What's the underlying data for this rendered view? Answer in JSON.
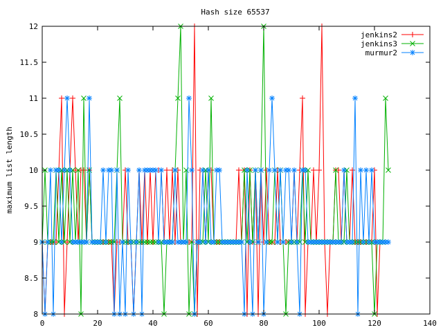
{
  "chart_data": {
    "type": "line",
    "title": "Hash size 65537",
    "xlabel": "",
    "ylabel": "maximum list length",
    "xlim": [
      0,
      140
    ],
    "ylim": [
      8,
      12
    ],
    "xticks": [
      0,
      20,
      40,
      60,
      80,
      100,
      120,
      140
    ],
    "yticks": [
      8,
      8.5,
      9,
      9.5,
      10,
      10.5,
      11,
      11.5,
      12
    ],
    "grid": false,
    "legend_position": "top-right",
    "series": [
      {
        "name": "jenkins2",
        "color": "#ff0000",
        "marker": "plus",
        "values": [
          9,
          8,
          9,
          9,
          9,
          9,
          10,
          11,
          8,
          9,
          10,
          11,
          10,
          9,
          10,
          10,
          9,
          10,
          9,
          9,
          9,
          9,
          9,
          9,
          9,
          9,
          8,
          9,
          9,
          9,
          10,
          9,
          9,
          8,
          9,
          10,
          9,
          10,
          9,
          10,
          9,
          10,
          10,
          10,
          9,
          10,
          9,
          10,
          9,
          10,
          9,
          9,
          9,
          9,
          9,
          12,
          8,
          10,
          10,
          9,
          10,
          10,
          9,
          9,
          9,
          9,
          9,
          9,
          9,
          9,
          9,
          10,
          9,
          10,
          8,
          10,
          9,
          10,
          8,
          10,
          9,
          10,
          9,
          9,
          9,
          10,
          9,
          9,
          9,
          9,
          9,
          10,
          9,
          10,
          11,
          8,
          9,
          9,
          10,
          9,
          10,
          12,
          9,
          8,
          9,
          9,
          10,
          10,
          9,
          10,
          9,
          9,
          10,
          9,
          9,
          9,
          9,
          9,
          9,
          9,
          10,
          8,
          9,
          9,
          9,
          9
        ]
      },
      {
        "name": "jenkins3",
        "color": "#00b000",
        "marker": "x",
        "values": [
          9,
          10,
          9,
          9,
          9,
          10,
          9,
          10,
          9,
          10,
          9,
          10,
          9,
          10,
          8,
          11,
          9,
          10,
          9,
          9,
          9,
          9,
          9,
          9,
          9,
          9,
          9,
          10,
          11,
          9,
          9,
          9,
          9,
          9,
          9,
          9,
          9,
          9,
          9,
          9,
          9,
          9,
          9,
          9,
          8,
          9,
          9,
          9,
          10,
          11,
          12,
          9,
          10,
          8,
          9,
          8,
          9,
          9,
          9,
          10,
          9,
          11,
          9,
          9,
          9,
          9,
          9,
          9,
          9,
          9,
          9,
          9,
          9,
          10,
          9,
          10,
          9,
          10,
          9,
          10,
          12,
          9,
          9,
          9,
          10,
          9,
          10,
          9,
          8,
          9,
          9,
          9,
          9,
          9,
          10,
          9,
          10,
          9,
          9,
          9,
          9,
          9,
          9,
          9,
          9,
          9,
          10,
          9,
          9,
          9,
          10,
          9,
          9,
          9,
          9,
          9,
          9,
          9,
          9,
          9,
          8,
          9,
          9,
          9,
          11,
          10
        ]
      },
      {
        "name": "murmur2",
        "color": "#0080ff",
        "marker": "star",
        "values": [
          9,
          8,
          9,
          10,
          8,
          10,
          10,
          9,
          10,
          11,
          10,
          9,
          9,
          9,
          9,
          9,
          9,
          11,
          9,
          9,
          9,
          9,
          10,
          9,
          10,
          10,
          8,
          10,
          8,
          9,
          8,
          10,
          9,
          8,
          9,
          10,
          8,
          10,
          10,
          10,
          10,
          10,
          9,
          10,
          9,
          9,
          9,
          9,
          10,
          9,
          9,
          9,
          9,
          11,
          10,
          8,
          9,
          9,
          10,
          9,
          10,
          9,
          9,
          10,
          10,
          9,
          9,
          9,
          9,
          9,
          9,
          9,
          9,
          8,
          10,
          9,
          8,
          10,
          9,
          10,
          8,
          9,
          10,
          11,
          10,
          9,
          10,
          9,
          10,
          10,
          9,
          10,
          9,
          8,
          10,
          10,
          9,
          9,
          9,
          9,
          9,
          9,
          9,
          9,
          9,
          9,
          9,
          9,
          9,
          10,
          9,
          9,
          9,
          11,
          8,
          10,
          9,
          10,
          9,
          10,
          9,
          9,
          9,
          9,
          9,
          9
        ]
      }
    ]
  }
}
